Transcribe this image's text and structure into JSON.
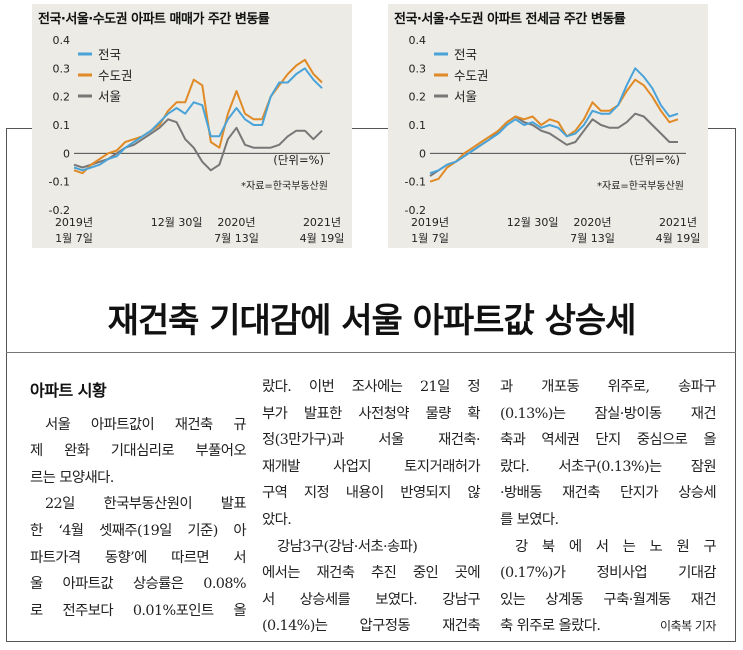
{
  "headline": "재건축 기대감에 서울 아파트값 상승세",
  "section_title": "아파트 시황",
  "col1_lines": [
    "서울 아파트값이 재건축 규",
    "제 완화 기대심리로 부풀어오",
    "르는 모양새다.",
    "22일 한국부동산원이 발표",
    "한 ‘4월 셋째주(19일 기준) 아",
    "파트가격 동향’에 따르면 서",
    "울 아파트값 상승률은 0.08%",
    "로 전주보다 0.01%포인트 올"
  ],
  "col2_lines": [
    "랐다. 이번 조사에는 21일 정",
    "부가 발표한 사전청약 물량 확",
    "정(3만가구)과 서울 재건축·",
    "재개발 사업지 토지거래허가",
    "구역 지정 내용이 반영되지 않",
    "았다.",
    "강남3구(강남·서초·송파)",
    "에서는 재건축 추진 중인 곳에",
    "서 상승세를 보였다. 강남구",
    "(0.14%)는 압구정동 재건축"
  ],
  "col3_lines": [
    "과 개포동 위주로, 송파구",
    "(0.13%)는 잠실·방이동 재건",
    "축과 역세권 단지 중심으로 올",
    "랐다. 서초구(0.13%)는 잠원",
    "·방배동 재건축 단지가 상승세",
    "를 보였다.",
    "강 북 에 서 는   노 원 구",
    "(0.17%)가 정비사업 기대감",
    "있는 상계동 구축·월계동 재건",
    "축 위주로 올랐다."
  ],
  "byline": "이축복 기자",
  "chart_data": [
    {
      "type": "line",
      "title": "전국·서울·수도권 아파트 매매가 주간 변동률",
      "unit_label": "(단위=%)",
      "source": "*자료=한국부동산원",
      "ylim": [
        -0.2,
        0.4
      ],
      "yticks": [
        "0.4",
        "0.3",
        "0.2",
        "0.1",
        "0",
        "-0.1",
        "-0.2"
      ],
      "xticks": [
        {
          "top": "2019년",
          "bottom": "1월 7일"
        },
        {
          "top": "12월 30일",
          "bottom": ""
        },
        {
          "top": "2020년",
          "bottom": "7월 13일"
        },
        {
          "top": "2021년",
          "bottom": "4월 19일"
        }
      ],
      "x_points": [
        "2019-01-07",
        "2019-02-04",
        "2019-03-04",
        "2019-04-01",
        "2019-05-06",
        "2019-06-03",
        "2019-07-01",
        "2019-08-05",
        "2019-09-02",
        "2019-10-07",
        "2019-11-04",
        "2019-12-02",
        "2019-12-30",
        "2020-01-27",
        "2020-02-24",
        "2020-03-23",
        "2020-04-20",
        "2020-05-18",
        "2020-06-15",
        "2020-07-13",
        "2020-08-10",
        "2020-09-07",
        "2020-10-05",
        "2020-11-02",
        "2020-11-30",
        "2020-12-28",
        "2021-01-25",
        "2021-02-22",
        "2021-03-22",
        "2021-04-19"
      ],
      "series": [
        {
          "name": "전국",
          "color": "#4aa3d8",
          "values": [
            -0.05,
            -0.06,
            -0.05,
            -0.04,
            -0.02,
            -0.01,
            0.02,
            0.04,
            0.06,
            0.08,
            0.11,
            0.14,
            0.16,
            0.14,
            0.18,
            0.17,
            0.06,
            0.06,
            0.12,
            0.16,
            0.12,
            0.1,
            0.1,
            0.2,
            0.25,
            0.25,
            0.28,
            0.3,
            0.26,
            0.23
          ]
        },
        {
          "name": "수도권",
          "color": "#e08a26",
          "values": [
            -0.06,
            -0.07,
            -0.04,
            -0.02,
            0.0,
            0.01,
            0.04,
            0.05,
            0.06,
            0.08,
            0.1,
            0.15,
            0.18,
            0.18,
            0.26,
            0.24,
            0.04,
            0.02,
            0.14,
            0.22,
            0.14,
            0.12,
            0.12,
            0.2,
            0.24,
            0.28,
            0.31,
            0.33,
            0.28,
            0.25
          ]
        },
        {
          "name": "서울",
          "color": "#777777",
          "values": [
            -0.04,
            -0.05,
            -0.04,
            -0.03,
            -0.02,
            0.0,
            0.02,
            0.03,
            0.05,
            0.07,
            0.09,
            0.12,
            0.11,
            0.05,
            0.02,
            -0.03,
            -0.06,
            -0.04,
            0.05,
            0.09,
            0.03,
            0.02,
            0.02,
            0.02,
            0.03,
            0.06,
            0.08,
            0.08,
            0.05,
            0.08
          ]
        }
      ]
    },
    {
      "type": "line",
      "title": "전국·서울·수도권 아파트 전세금 주간 변동률",
      "unit_label": "(단위=%)",
      "source": "*자료=한국부동산원",
      "ylim": [
        -0.2,
        0.4
      ],
      "yticks": [
        "0.4",
        "0.3",
        "0.2",
        "0.1",
        "0",
        "-0.1",
        "-0.2"
      ],
      "xticks": [
        {
          "top": "2019년",
          "bottom": "1월 7일"
        },
        {
          "top": "12월 30일",
          "bottom": ""
        },
        {
          "top": "2020년",
          "bottom": "7월 13일"
        },
        {
          "top": "2021년",
          "bottom": "4월 19일"
        }
      ],
      "x_points": [
        "2019-01-07",
        "2019-02-04",
        "2019-03-04",
        "2019-04-01",
        "2019-05-06",
        "2019-06-03",
        "2019-07-01",
        "2019-08-05",
        "2019-09-02",
        "2019-10-07",
        "2019-11-04",
        "2019-12-02",
        "2019-12-30",
        "2020-01-27",
        "2020-02-24",
        "2020-03-23",
        "2020-04-20",
        "2020-05-18",
        "2020-06-15",
        "2020-07-13",
        "2020-08-10",
        "2020-09-07",
        "2020-10-05",
        "2020-11-02",
        "2020-11-30",
        "2020-12-28",
        "2021-01-25",
        "2021-02-22",
        "2021-03-22",
        "2021-04-19"
      ],
      "series": [
        {
          "name": "전국",
          "color": "#4aa3d8",
          "values": [
            -0.07,
            -0.06,
            -0.04,
            -0.03,
            -0.01,
            0.01,
            0.03,
            0.05,
            0.07,
            0.1,
            0.12,
            0.1,
            0.11,
            0.09,
            0.1,
            0.09,
            0.06,
            0.07,
            0.1,
            0.15,
            0.14,
            0.14,
            0.17,
            0.24,
            0.3,
            0.27,
            0.23,
            0.17,
            0.13,
            0.14
          ]
        },
        {
          "name": "수도권",
          "color": "#e08a26",
          "values": [
            -0.1,
            -0.09,
            -0.05,
            -0.03,
            0.0,
            0.02,
            0.04,
            0.06,
            0.08,
            0.11,
            0.13,
            0.12,
            0.13,
            0.1,
            0.12,
            0.11,
            0.06,
            0.08,
            0.12,
            0.18,
            0.15,
            0.15,
            0.17,
            0.22,
            0.26,
            0.24,
            0.2,
            0.15,
            0.11,
            0.12
          ]
        },
        {
          "name": "서울",
          "color": "#777777",
          "values": [
            -0.08,
            -0.06,
            -0.04,
            -0.03,
            -0.01,
            0.01,
            0.03,
            0.05,
            0.08,
            0.11,
            0.13,
            0.11,
            0.1,
            0.08,
            0.07,
            0.05,
            0.03,
            0.04,
            0.08,
            0.12,
            0.1,
            0.09,
            0.09,
            0.11,
            0.14,
            0.13,
            0.1,
            0.07,
            0.04,
            0.04
          ]
        }
      ]
    }
  ]
}
